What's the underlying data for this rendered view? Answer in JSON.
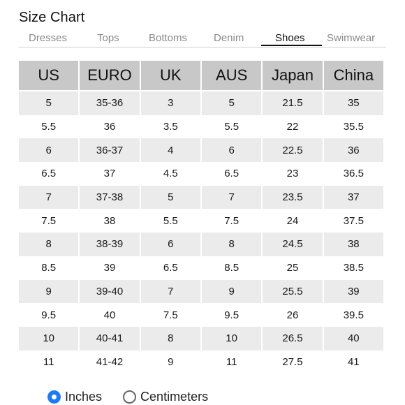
{
  "title": "Size Chart",
  "tabs": [
    {
      "label": "Dresses",
      "active": false
    },
    {
      "label": "Tops",
      "active": false
    },
    {
      "label": "Bottoms",
      "active": false
    },
    {
      "label": "Denim",
      "active": false
    },
    {
      "label": "Shoes",
      "active": true
    },
    {
      "label": "Swimwear",
      "active": false
    }
  ],
  "table": {
    "headers": [
      "US",
      "EURO",
      "UK",
      "AUS",
      "Japan",
      "China"
    ],
    "rows": [
      [
        "5",
        "35-36",
        "3",
        "5",
        "21.5",
        "35"
      ],
      [
        "5.5",
        "36",
        "3.5",
        "5.5",
        "22",
        "35.5"
      ],
      [
        "6",
        "36-37",
        "4",
        "6",
        "22.5",
        "36"
      ],
      [
        "6.5",
        "37",
        "4.5",
        "6.5",
        "23",
        "36.5"
      ],
      [
        "7",
        "37-38",
        "5",
        "7",
        "23.5",
        "37"
      ],
      [
        "7.5",
        "38",
        "5.5",
        "7.5",
        "24",
        "37.5"
      ],
      [
        "8",
        "38-39",
        "6",
        "8",
        "24.5",
        "38"
      ],
      [
        "8.5",
        "39",
        "6.5",
        "8.5",
        "25",
        "38.5"
      ],
      [
        "9",
        "39-40",
        "7",
        "9",
        "25.5",
        "39"
      ],
      [
        "9.5",
        "40",
        "7.5",
        "9.5",
        "26",
        "39.5"
      ],
      [
        "10",
        "40-41",
        "8",
        "10",
        "26.5",
        "40"
      ],
      [
        "11",
        "41-42",
        "9",
        "11",
        "27.5",
        "41"
      ]
    ]
  },
  "units": {
    "options": [
      "Inches",
      "Centimeters"
    ],
    "selected": "Inches"
  },
  "colors": {
    "header_bg": "#c8c8c8",
    "stripe_bg": "#ebebeb",
    "radio_accent": "#1e7cf2"
  }
}
